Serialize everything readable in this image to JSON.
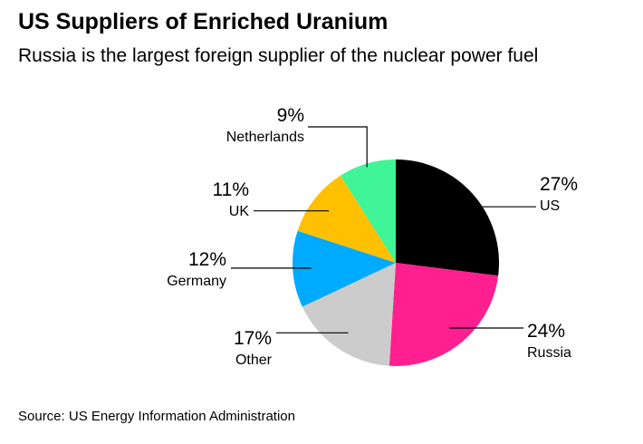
{
  "header": {
    "title": "US Suppliers of Enriched Uranium",
    "subtitle": "Russia is the largest foreign supplier of the nuclear power fuel"
  },
  "footer": {
    "source": "Source: US Energy Information Administration"
  },
  "chart_data": {
    "type": "pie",
    "title": "US Suppliers of Enriched Uranium",
    "subtitle": "Russia is the largest foreign supplier of the nuclear power fuel",
    "slices": [
      {
        "label": "US",
        "value": 27,
        "value_label": "27%",
        "color": "#000000"
      },
      {
        "label": "Russia",
        "value": 24,
        "value_label": "24%",
        "color": "#ff1f8e"
      },
      {
        "label": "Other",
        "value": 17,
        "value_label": "17%",
        "color": "#cccccc"
      },
      {
        "label": "Germany",
        "value": 12,
        "value_label": "12%",
        "color": "#00aaff"
      },
      {
        "label": "UK",
        "value": 11,
        "value_label": "11%",
        "color": "#ffc000"
      },
      {
        "label": "Netherlands",
        "value": 9,
        "value_label": "9%",
        "color": "#3ff597"
      }
    ],
    "start": "12 o'clock",
    "direction": "clockwise",
    "legend": "none (direct labels)"
  }
}
